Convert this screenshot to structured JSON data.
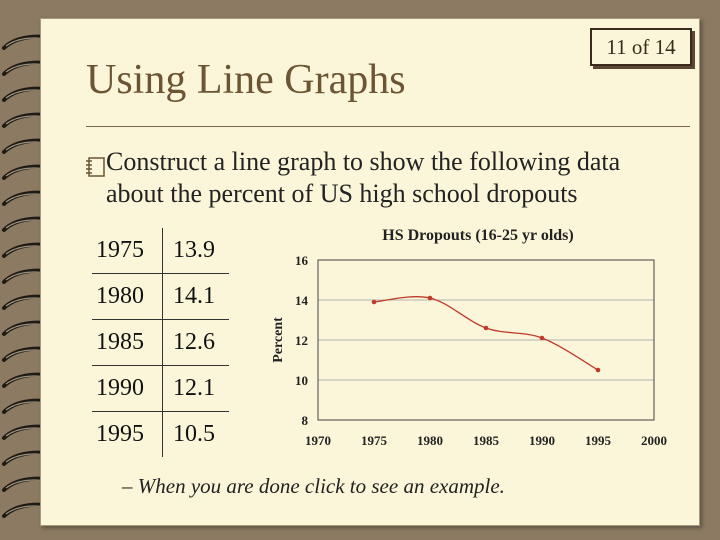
{
  "slide": {
    "counter": "11 of 14",
    "title": "Using Line Graphs",
    "bullet_icon": "notebook-bullet-icon",
    "bullet_text": "Construct a line graph to show the following data about the percent of US high school dropouts",
    "table": [
      {
        "year": "1975",
        "value": "13.9"
      },
      {
        "year": "1980",
        "value": "14.1"
      },
      {
        "year": "1985",
        "value": "12.6"
      },
      {
        "year": "1990",
        "value": "12.1"
      },
      {
        "year": "1995",
        "value": "10.5"
      }
    ],
    "footnote": "– When you are done click to see an example."
  },
  "chart_data": {
    "type": "line",
    "title": "HS Dropouts (16-25 yr olds)",
    "xlabel": "",
    "ylabel": "Percent",
    "x_ticks": [
      "1970",
      "1975",
      "1980",
      "1985",
      "1990",
      "1995",
      "2000"
    ],
    "y_ticks": [
      "8",
      "10",
      "12",
      "14",
      "16"
    ],
    "xlim": [
      1970,
      2000
    ],
    "ylim": [
      8,
      16
    ],
    "grid": {
      "horizontal": true,
      "vertical": false
    },
    "line_color": "#c0392b",
    "series": [
      {
        "x": [
          1975,
          1980,
          1985,
          1990,
          1995
        ],
        "y": [
          13.9,
          14.1,
          12.6,
          12.1,
          10.5
        ]
      }
    ]
  }
}
